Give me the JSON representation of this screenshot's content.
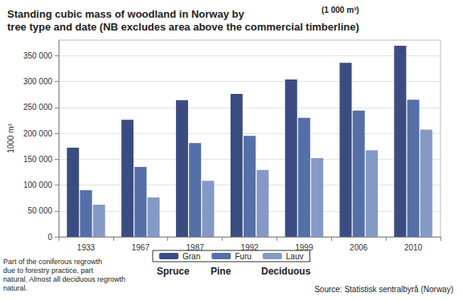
{
  "chart_data": {
    "type": "bar",
    "title": "Standing cubic mass of woodland in Norway by\ntree type and date (NB excludes area above the commercial timberline)",
    "subtitle": "(1 000 m³)",
    "y_label": "1000 m³",
    "categories": [
      "1933",
      "1967",
      "1987",
      "1992",
      "1999",
      "2006",
      "2010"
    ],
    "series": [
      {
        "name": "Gran",
        "color": "#3b4d80",
        "values": [
          172000,
          226000,
          264000,
          276000,
          304000,
          336000,
          369000
        ]
      },
      {
        "name": "Furu",
        "color": "#5570a8",
        "values": [
          90000,
          135000,
          181000,
          195000,
          230000,
          244000,
          265000
        ]
      },
      {
        "name": "Lauv",
        "color": "#8499c6",
        "values": [
          62000,
          76000,
          108000,
          129000,
          152000,
          167000,
          207000
        ]
      }
    ],
    "ylim": [
      0,
      380000
    ],
    "yticks": [
      0,
      {
        "value": 50000,
        "label": "50 000"
      },
      {
        "value": 100000,
        "label": "100 000"
      },
      {
        "value": 150000,
        "label": "150 000"
      },
      {
        "value": 200000,
        "label": "200 000"
      },
      {
        "value": 250000,
        "label": "250 000"
      },
      {
        "value": 300000,
        "label": "300 000"
      },
      {
        "value": 350000,
        "label": "350 000"
      }
    ],
    "grid": true,
    "legend": "bottom",
    "legend_notes": [
      "Spruce",
      "Pine",
      "Deciduous"
    ],
    "note": [
      "Part of the coniferous regrowth",
      "due to forestry practice, part",
      "natural. Almost all deciduous regrowth",
      "natural."
    ],
    "source": "Source: Statistisk sentralbyrå (Norway)"
  }
}
